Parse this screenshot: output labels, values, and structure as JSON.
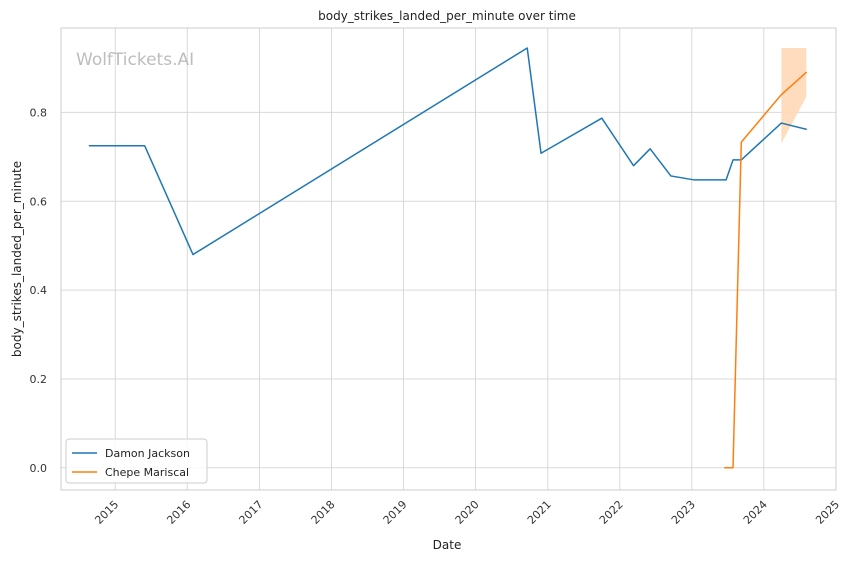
{
  "chart_data": {
    "type": "line",
    "title": "body_strikes_landed_per_minute over time",
    "xlabel": "Date",
    "ylabel": "body_strikes_landed_per_minute",
    "watermark": "WolfTickets.AI",
    "x_ticks": [
      "2015",
      "2016",
      "2017",
      "2018",
      "2019",
      "2020",
      "2021",
      "2022",
      "2023",
      "2024",
      "2025"
    ],
    "y_ticks": [
      "0.0",
      "0.2",
      "0.4",
      "0.6",
      "0.8"
    ],
    "xlim": [
      "2014-04-01",
      "2025-01-01"
    ],
    "ylim": [
      -0.05,
      0.99
    ],
    "grid": true,
    "legend_position": "lower-left",
    "series": [
      {
        "name": "Damon Jackson",
        "color": "#1f77b4",
        "points": [
          [
            "2014-08-23",
            0.725
          ],
          [
            "2015-05-30",
            0.725
          ],
          [
            "2016-01-30",
            0.48
          ],
          [
            "2020-09-19",
            0.945
          ],
          [
            "2020-11-28",
            0.708
          ],
          [
            "2021-10-02",
            0.787
          ],
          [
            "2022-03-12",
            0.68
          ],
          [
            "2022-06-04",
            0.718
          ],
          [
            "2022-09-17",
            0.657
          ],
          [
            "2023-01-14",
            0.648
          ],
          [
            "2023-06-24",
            0.648
          ],
          [
            "2023-07-29",
            0.693
          ],
          [
            "2023-09-09",
            0.693
          ],
          [
            "2024-03-30",
            0.776
          ],
          [
            "2024-08-03",
            0.762
          ]
        ]
      },
      {
        "name": "Chepe Mariscal",
        "color": "#ff7f0e",
        "points": [
          [
            "2023-06-17",
            0.0
          ],
          [
            "2023-07-29",
            0.0
          ],
          [
            "2023-09-09",
            0.733
          ],
          [
            "2024-03-30",
            0.84
          ],
          [
            "2024-08-03",
            0.89
          ]
        ],
        "band": {
          "color": "#ffd8b6",
          "points": [
            [
              "2024-03-30",
              0.73,
              0.945
            ],
            [
              "2024-08-03",
              0.835,
              0.945
            ]
          ]
        }
      }
    ]
  }
}
